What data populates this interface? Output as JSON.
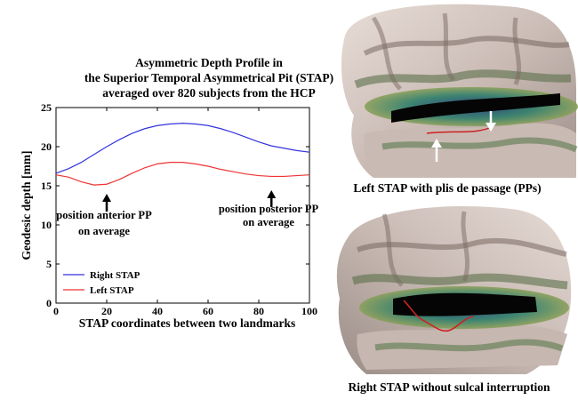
{
  "title": {
    "line1": "Asymmetric Depth Profile in",
    "line2": "the Superior Temporal Asymmetrical Pit (STAP)",
    "line3": "averaged over 820 subjects from the HCP"
  },
  "chart_data": {
    "type": "line",
    "xlabel": "STAP coordinates between two landmarks",
    "ylabel": "Geodesic depth [mm]",
    "xlim": [
      0,
      100
    ],
    "ylim": [
      0,
      25
    ],
    "xticks": [
      0,
      20,
      40,
      60,
      80,
      100
    ],
    "yticks": [
      0,
      5,
      10,
      15,
      20,
      25
    ],
    "grid": false,
    "legend_position": "bottom-left",
    "x": [
      0,
      5,
      10,
      15,
      20,
      25,
      30,
      35,
      40,
      45,
      50,
      55,
      60,
      65,
      70,
      75,
      80,
      85,
      90,
      95,
      100
    ],
    "series": [
      {
        "name": "Right STAP",
        "color": "#3333dd",
        "values": [
          16.6,
          17.2,
          18.0,
          19.0,
          20.0,
          20.9,
          21.7,
          22.3,
          22.7,
          22.9,
          23.0,
          22.9,
          22.7,
          22.3,
          21.8,
          21.2,
          20.6,
          20.1,
          19.8,
          19.5,
          19.3
        ]
      },
      {
        "name": "Left STAP",
        "color": "#ee3333",
        "values": [
          16.4,
          16.1,
          15.5,
          15.1,
          15.2,
          15.8,
          16.6,
          17.3,
          17.8,
          18.0,
          18.0,
          17.8,
          17.5,
          17.1,
          16.8,
          16.5,
          16.3,
          16.2,
          16.2,
          16.3,
          16.4
        ]
      }
    ],
    "annotations": [
      {
        "line1": "position anterior PP",
        "line2": "on average",
        "arrow_x": 20
      },
      {
        "line1": "position posterior PP",
        "line2": "on average",
        "arrow_x": 85
      }
    ]
  },
  "images": {
    "top_caption": "Left STAP with plis de passage (PPs)",
    "bottom_caption": "Right STAP without sulcal interruption"
  }
}
